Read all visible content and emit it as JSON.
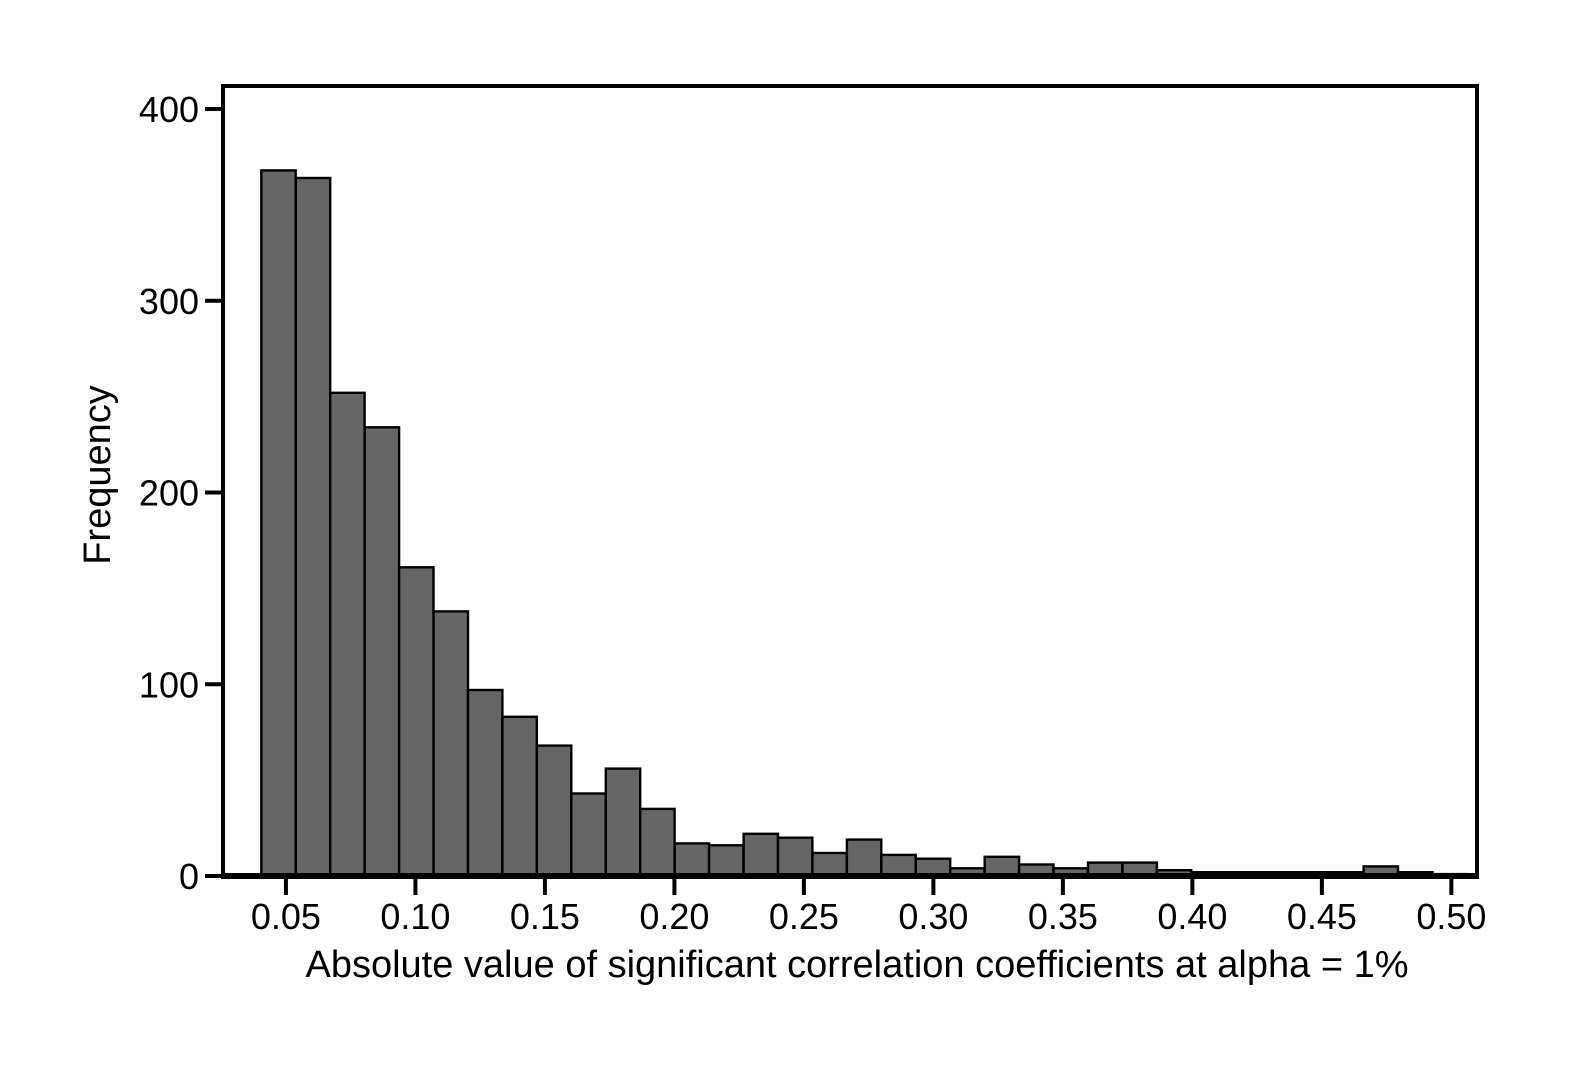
{
  "chart_data": {
    "type": "bar",
    "subtype": "histogram",
    "title": "",
    "xlabel": "Absolute value of significant correlation coefficients at alpha = 1%",
    "ylabel": "Frequency",
    "bin_start": 0.0405,
    "bin_width": 0.0133,
    "frequencies": [
      368,
      364,
      252,
      234,
      161,
      138,
      97,
      83,
      68,
      43,
      56,
      35,
      17,
      16,
      22,
      20,
      12,
      19,
      11,
      9,
      4,
      10,
      6,
      4,
      7,
      7,
      3,
      2,
      2,
      2,
      2,
      2,
      5,
      2,
      1
    ],
    "x_ticks": [
      0.05,
      0.1,
      0.15,
      0.2,
      0.25,
      0.3,
      0.35,
      0.4,
      0.45,
      0.5
    ],
    "x_tick_labels": [
      "0.05",
      "0.10",
      "0.15",
      "0.20",
      "0.25",
      "0.30",
      "0.35",
      "0.40",
      "0.45",
      "0.50"
    ],
    "y_ticks": [
      0,
      100,
      200,
      300,
      400
    ],
    "y_tick_labels": [
      "0",
      "100",
      "200",
      "300",
      "400"
    ],
    "xlim": [
      0.0257,
      0.5099
    ],
    "ylim": [
      0,
      412
    ],
    "bar_fill": "#666666",
    "bar_stroke": "#000000",
    "axis_color": "#000000",
    "grid": false,
    "legend": null,
    "frame": "box"
  }
}
